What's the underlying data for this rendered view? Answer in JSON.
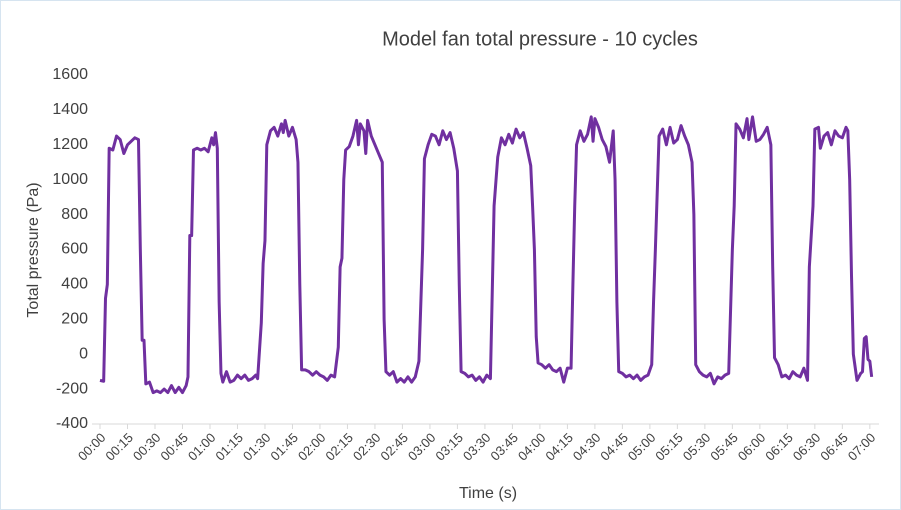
{
  "chart_data": {
    "type": "line",
    "title": "Model fan total pressure - 10 cycles",
    "x_label": "Time (s)",
    "y_label": "Total pressure (Pa)",
    "xlim": [
      0,
      425
    ],
    "ylim": [
      -400,
      1600
    ],
    "yticks": [
      -400,
      -200,
      0,
      200,
      400,
      600,
      800,
      1000,
      1200,
      1400,
      1600
    ],
    "xticks": [
      {
        "value": 0,
        "label": "00:00"
      },
      {
        "value": 15,
        "label": "00:15"
      },
      {
        "value": 30,
        "label": "00:30"
      },
      {
        "value": 45,
        "label": "00:45"
      },
      {
        "value": 60,
        "label": "01:00"
      },
      {
        "value": 75,
        "label": "01:15"
      },
      {
        "value": 90,
        "label": "01:30"
      },
      {
        "value": 105,
        "label": "01:45"
      },
      {
        "value": 120,
        "label": "02:00"
      },
      {
        "value": 135,
        "label": "02:15"
      },
      {
        "value": 150,
        "label": "02:30"
      },
      {
        "value": 165,
        "label": "02:45"
      },
      {
        "value": 180,
        "label": "03:00"
      },
      {
        "value": 195,
        "label": "03:15"
      },
      {
        "value": 210,
        "label": "03:30"
      },
      {
        "value": 225,
        "label": "03:45"
      },
      {
        "value": 240,
        "label": "04:00"
      },
      {
        "value": 255,
        "label": "04:15"
      },
      {
        "value": 270,
        "label": "04:30"
      },
      {
        "value": 285,
        "label": "04:45"
      },
      {
        "value": 300,
        "label": "05:00"
      },
      {
        "value": 315,
        "label": "05:15"
      },
      {
        "value": 330,
        "label": "05:30"
      },
      {
        "value": 345,
        "label": "05:45"
      },
      {
        "value": 360,
        "label": "06:00"
      },
      {
        "value": 375,
        "label": "06:15"
      },
      {
        "value": 390,
        "label": "06:30"
      },
      {
        "value": 405,
        "label": "06:45"
      },
      {
        "value": 420,
        "label": "07:00"
      }
    ],
    "x": [
      0,
      2,
      3,
      4,
      5,
      7,
      9,
      11,
      13,
      15,
      17,
      19,
      21,
      22,
      23,
      24,
      25,
      27,
      29,
      31,
      33,
      35,
      37,
      39,
      41,
      43,
      45,
      47,
      48,
      49,
      50,
      51,
      53,
      55,
      57,
      59,
      61,
      62,
      63,
      64,
      65,
      66,
      67,
      69,
      71,
      73,
      75,
      77,
      79,
      81,
      83,
      85,
      86,
      87,
      88,
      89,
      90,
      91,
      93,
      95,
      97,
      99,
      100,
      101,
      103,
      105,
      107,
      108,
      109,
      110,
      112,
      114,
      116,
      118,
      120,
      122,
      124,
      126,
      128,
      130,
      131,
      132,
      133,
      134,
      136,
      138,
      140,
      141,
      142,
      144,
      145,
      146,
      148,
      150,
      152,
      154,
      155,
      156,
      158,
      160,
      162,
      164,
      166,
      168,
      170,
      172,
      174,
      175,
      176,
      177,
      179,
      181,
      183,
      185,
      187,
      189,
      191,
      193,
      195,
      196,
      197,
      199,
      201,
      203,
      205,
      207,
      209,
      211,
      213,
      215,
      217,
      219,
      221,
      223,
      225,
      227,
      229,
      231,
      233,
      235,
      236,
      237,
      238,
      239,
      241,
      243,
      245,
      247,
      249,
      251,
      253,
      255,
      257,
      258,
      259,
      260,
      262,
      264,
      266,
      268,
      269,
      270,
      272,
      274,
      276,
      278,
      280,
      281,
      282,
      283,
      285,
      287,
      289,
      291,
      293,
      295,
      297,
      299,
      301,
      302,
      303,
      305,
      307,
      309,
      311,
      313,
      315,
      317,
      319,
      321,
      323,
      324,
      325,
      327,
      329,
      331,
      333,
      335,
      337,
      339,
      341,
      343,
      345,
      346,
      347,
      349,
      351,
      353,
      354,
      356,
      358,
      360,
      362,
      364,
      366,
      367,
      368,
      370,
      372,
      374,
      376,
      378,
      380,
      382,
      384,
      386,
      387,
      389,
      390,
      392,
      393,
      395,
      397,
      399,
      401,
      403,
      405,
      407,
      408,
      409,
      410,
      411,
      413,
      415,
      416,
      417,
      418,
      419,
      420,
      421
    ],
    "series": [
      {
        "color": "#7030a0",
        "values": [
          -150,
          -155,
          320,
          400,
          1180,
          1170,
          1250,
          1230,
          1150,
          1200,
          1220,
          1240,
          1230,
          600,
          80,
          80,
          -170,
          -160,
          -220,
          -210,
          -220,
          -200,
          -220,
          -180,
          -220,
          -190,
          -220,
          -180,
          -130,
          680,
          680,
          1170,
          1180,
          1170,
          1180,
          1160,
          1240,
          1200,
          1270,
          1180,
          300,
          -110,
          -160,
          -100,
          -160,
          -150,
          -120,
          -140,
          -120,
          -150,
          -140,
          -120,
          -140,
          20,
          180,
          520,
          650,
          1200,
          1280,
          1300,
          1250,
          1320,
          1270,
          1340,
          1250,
          1300,
          1230,
          1100,
          400,
          -90,
          -90,
          -100,
          -120,
          -100,
          -120,
          -130,
          -150,
          -120,
          -130,
          40,
          500,
          550,
          1000,
          1170,
          1190,
          1250,
          1340,
          1200,
          1320,
          1280,
          1150,
          1340,
          1250,
          1200,
          1150,
          1100,
          200,
          -100,
          -120,
          -100,
          -160,
          -140,
          -160,
          -130,
          -160,
          -130,
          -40,
          280,
          600,
          1120,
          1200,
          1260,
          1250,
          1200,
          1280,
          1230,
          1270,
          1180,
          1050,
          400,
          -100,
          -110,
          -130,
          -120,
          -150,
          -130,
          -160,
          -120,
          -140,
          850,
          1130,
          1240,
          1200,
          1260,
          1210,
          1290,
          1240,
          1270,
          1180,
          1080,
          850,
          600,
          100,
          -50,
          -60,
          -80,
          -60,
          -90,
          -100,
          -80,
          -160,
          -80,
          -80,
          400,
          850,
          1200,
          1280,
          1220,
          1260,
          1360,
          1220,
          1350,
          1300,
          1230,
          1190,
          1100,
          1280,
          1000,
          300,
          -100,
          -110,
          -130,
          -120,
          -140,
          -120,
          -150,
          -130,
          -120,
          -60,
          300,
          600,
          1250,
          1290,
          1200,
          1300,
          1210,
          1230,
          1310,
          1250,
          1200,
          1100,
          800,
          -60,
          -100,
          -120,
          -130,
          -110,
          -170,
          -130,
          -140,
          -120,
          -110,
          600,
          850,
          1320,
          1290,
          1240,
          1350,
          1230,
          1360,
          1220,
          1230,
          1260,
          1300,
          1200,
          500,
          -20,
          -60,
          -130,
          -120,
          -140,
          -100,
          -120,
          -130,
          -80,
          -150,
          500,
          850,
          1290,
          1300,
          1180,
          1250,
          1270,
          1200,
          1280,
          1250,
          1240,
          1300,
          1280,
          1000,
          450,
          0,
          -150,
          -110,
          -100,
          90,
          100,
          -30,
          -40,
          -130
        ]
      }
    ]
  }
}
